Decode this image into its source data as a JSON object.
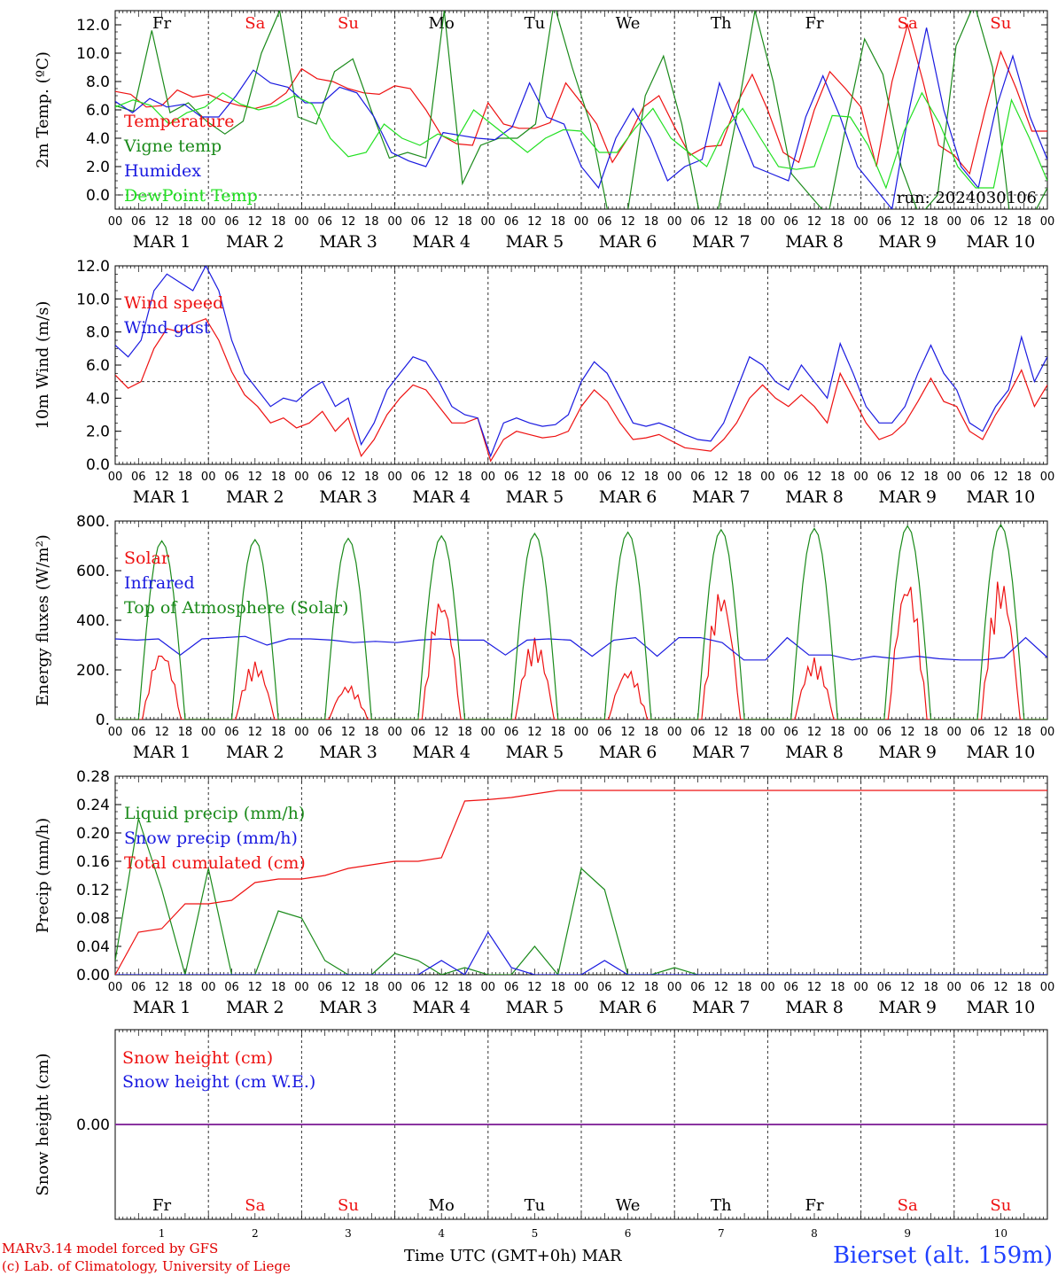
{
  "colors": {
    "red": "#ee1111",
    "dark_green": "#1a8a1a",
    "blue": "#1a1ae0",
    "light_green": "#22e022",
    "purple": "#8a2a9a"
  },
  "days": {
    "weekday_labels": [
      "Fr",
      "Sa",
      "Su",
      "Mo",
      "Tu",
      "We",
      "Th",
      "Fr",
      "Sa",
      "Su"
    ],
    "weekend_flags": [
      false,
      true,
      true,
      false,
      false,
      false,
      false,
      false,
      true,
      true
    ],
    "date_labels": [
      "MAR  1",
      "MAR  2",
      "MAR  3",
      "MAR  4",
      "MAR  5",
      "MAR  6",
      "MAR  7",
      "MAR  8",
      "MAR  9",
      "MAR 10"
    ],
    "day_numbers": [
      "1",
      "2",
      "3",
      "4",
      "5",
      "6",
      "7",
      "8",
      "9",
      "10"
    ],
    "hour_ticks": [
      "00",
      "06",
      "12",
      "18"
    ],
    "final_tick": "00"
  },
  "footer": {
    "credit_line1": "MARv3.14 model forced by GFS",
    "credit_line2": "(c) Lab. of Climatology, University of Liege",
    "xlabel": "Time UTC (GMT+0h)",
    "xlabel_suffix": "MAR",
    "station": "Bierset (alt. 159m)"
  },
  "chart_data": [
    {
      "type": "line",
      "id": "temp",
      "ylabel": "2m Temp. (ºC)",
      "ylim": [
        -1.0,
        13.0
      ],
      "yticks": [
        0.0,
        2.0,
        4.0,
        6.0,
        8.0,
        10.0,
        12.0
      ],
      "ytick_labels": [
        "0.0",
        "2.0",
        "4.0",
        "6.0",
        "8.0",
        "10.0",
        "12.0"
      ],
      "ref_line": 0.0,
      "show_weekdays": true,
      "annotation": "run: 2024030106",
      "x_hours_from_start": "0 to 240, every 6 h",
      "series": [
        {
          "name": "Temperature",
          "color_key": "red",
          "values": [
            7.3,
            7.1,
            6.2,
            6.3,
            7.4,
            6.9,
            7.1,
            6.6,
            6.3,
            6.1,
            6.4,
            7.2,
            8.9,
            8.2,
            8.0,
            7.5,
            7.2,
            7.1,
            7.7,
            7.5,
            6.0,
            4.2,
            3.6,
            3.5,
            6.5,
            5.0,
            4.7,
            4.7,
            5.1,
            7.9,
            6.5,
            5.0,
            2.3,
            4.0,
            6.2,
            7.0,
            4.8,
            2.8,
            3.4,
            3.5,
            6.4,
            8.5,
            6.0,
            3.0,
            2.3,
            6.0,
            8.7,
            7.5,
            6.2,
            2.0,
            8.0,
            12.0,
            8.0,
            3.5,
            2.8,
            1.5,
            6.0,
            10.1,
            7.5,
            4.5,
            4.5
          ]
        },
        {
          "name": "Vigne temp",
          "color_key": "dark_green",
          "values": [
            6.3,
            5.9,
            11.6,
            5.8,
            6.5,
            5.2,
            4.3,
            5.2,
            10.0,
            13.0,
            5.5,
            5.0,
            8.7,
            9.6,
            6.0,
            2.6,
            3.0,
            2.6,
            13.0,
            0.8,
            3.5,
            4.0,
            4.0,
            5.0,
            13.5,
            9.0,
            5.0,
            -1.5,
            -1.5,
            7.0,
            9.8,
            5.0,
            -1.5,
            -1.0,
            5.5,
            13.0,
            8.0,
            1.5,
            0.0,
            -1.5,
            5.0,
            11.0,
            8.5,
            2.0,
            -1.5,
            0.0,
            10.5,
            13.5,
            9.0,
            -2.0,
            -2.0,
            0.5
          ]
        },
        {
          "name": "Humidex",
          "color_key": "blue",
          "values": [
            6.6,
            5.8,
            6.8,
            6.2,
            6.4,
            5.5,
            5.5,
            7.0,
            8.8,
            7.9,
            7.6,
            6.5,
            6.5,
            7.6,
            7.2,
            5.5,
            3.0,
            2.4,
            2.0,
            4.4,
            4.2,
            4.0,
            3.9,
            4.8,
            7.9,
            5.5,
            5.0,
            2.0,
            0.5,
            4.0,
            6.1,
            4.0,
            1.0,
            2.0,
            2.5,
            7.9,
            5.0,
            2.0,
            1.5,
            1.0,
            5.5,
            8.4,
            5.5,
            2.0,
            0.5,
            -1.0,
            6.0,
            11.8,
            6.0,
            2.0,
            0.5,
            6.0,
            9.8,
            5.5,
            2.5
          ]
        },
        {
          "name": "DewPoint Temp",
          "color_key": "light_green",
          "values": [
            6.2,
            6.7,
            6.3,
            5.0,
            5.8,
            6.2,
            7.2,
            6.4,
            6.0,
            6.3,
            7.0,
            6.4,
            4.0,
            2.7,
            3.0,
            5.0,
            4.0,
            3.5,
            4.3,
            3.8,
            6.0,
            5.0,
            4.0,
            3.0,
            4.0,
            4.6,
            4.5,
            3.0,
            3.0,
            4.7,
            6.1,
            4.0,
            3.0,
            2.0,
            4.6,
            6.1,
            4.0,
            2.0,
            1.8,
            2.0,
            5.6,
            5.5,
            3.5,
            0.5,
            4.5,
            7.2,
            5.0,
            2.0,
            0.5,
            0.5,
            6.7,
            4.0,
            1.0
          ]
        }
      ]
    },
    {
      "type": "line",
      "id": "wind",
      "ylabel": "10m Wind (m/s)",
      "ylim": [
        0.0,
        12.0
      ],
      "yticks": [
        0.0,
        2.0,
        4.0,
        6.0,
        8.0,
        10.0,
        12.0
      ],
      "ytick_labels": [
        "0.0",
        "2.0",
        "4.0",
        "6.0",
        "8.0",
        "10.0",
        "12.0"
      ],
      "ref_line": 5.0,
      "show_weekdays": false,
      "series": [
        {
          "name": "Wind speed",
          "color_key": "red",
          "values": [
            5.4,
            4.6,
            5.0,
            7.0,
            8.2,
            8.0,
            8.5,
            8.8,
            7.5,
            5.6,
            4.2,
            3.5,
            2.5,
            2.8,
            2.2,
            2.5,
            3.2,
            2.0,
            2.8,
            0.5,
            1.5,
            3.0,
            4.0,
            4.8,
            4.5,
            3.5,
            2.5,
            2.5,
            2.8,
            0.2,
            1.5,
            2.0,
            1.8,
            1.6,
            1.7,
            2.0,
            3.5,
            4.5,
            3.8,
            2.5,
            1.5,
            1.6,
            1.8,
            1.4,
            1.0,
            0.9,
            0.8,
            1.5,
            2.5,
            4.0,
            4.8,
            4.0,
            3.5,
            4.2,
            3.5,
            2.5,
            5.5,
            4.0,
            2.5,
            1.5,
            1.8,
            2.5,
            3.8,
            5.2,
            3.8,
            3.5,
            2.0,
            1.5,
            3.0,
            4.2,
            5.7,
            3.5,
            4.8
          ]
        },
        {
          "name": "Wind gust",
          "color_key": "blue",
          "values": [
            7.2,
            6.5,
            7.5,
            10.5,
            11.5,
            11.0,
            10.5,
            12.0,
            10.5,
            7.5,
            5.5,
            4.5,
            3.5,
            4.0,
            3.8,
            4.5,
            5.0,
            3.5,
            4.0,
            1.2,
            2.5,
            4.5,
            5.5,
            6.5,
            6.2,
            5.0,
            3.5,
            3.0,
            2.8,
            0.5,
            2.5,
            2.8,
            2.5,
            2.3,
            2.4,
            3.0,
            5.0,
            6.2,
            5.5,
            4.0,
            2.5,
            2.3,
            2.5,
            2.2,
            1.8,
            1.5,
            1.4,
            2.5,
            4.5,
            6.5,
            6.0,
            5.0,
            4.5,
            6.0,
            5.0,
            4.0,
            7.3,
            5.5,
            3.5,
            2.5,
            2.5,
            3.5,
            5.5,
            7.2,
            5.5,
            4.5,
            2.5,
            2.0,
            3.5,
            4.5,
            7.7,
            5.0,
            6.5
          ]
        }
      ]
    },
    {
      "type": "line",
      "id": "flux",
      "ylabel": "Energy fluxes (W/m²)",
      "ylim": [
        0.0,
        800.0
      ],
      "yticks": [
        0.0,
        200.0,
        400.0,
        600.0,
        800.0
      ],
      "ytick_labels": [
        "0.",
        "200.",
        "400.",
        "600.",
        "800."
      ],
      "ref_line": null,
      "show_weekdays": false,
      "daily_solar_peaks": [
        285,
        235,
        140,
        505,
        330,
        205,
        535,
        250,
        580,
        580
      ],
      "daily_toa_peaks": [
        720,
        725,
        730,
        740,
        750,
        755,
        765,
        770,
        780,
        785
      ],
      "series": [
        {
          "name": "Solar",
          "color_key": "red",
          "values": "one daily cycle per day, peak values in daily_solar_peaks"
        },
        {
          "name": "Infrared",
          "color_key": "blue",
          "values": [
            325,
            320,
            325,
            260,
            325,
            330,
            335,
            300,
            325,
            325,
            320,
            310,
            315,
            310,
            320,
            325,
            320,
            320,
            260,
            320,
            325,
            320,
            255,
            320,
            330,
            255,
            330,
            330,
            310,
            240,
            240,
            330,
            260,
            260,
            240,
            255,
            245,
            255,
            245,
            240,
            240,
            250,
            330,
            250
          ]
        },
        {
          "name": "Top of Atmosphere (Solar)",
          "color_key": "dark_green",
          "values": "one daily cycle per day, peak values in daily_toa_peaks"
        }
      ]
    },
    {
      "type": "line",
      "id": "precip",
      "ylabel": "Precip (mm/h)",
      "ylim": [
        0.0,
        0.28
      ],
      "yticks": [
        0.0,
        0.04,
        0.08,
        0.12,
        0.16,
        0.2,
        0.24,
        0.28
      ],
      "ytick_labels": [
        "0.00",
        "0.04",
        "0.08",
        "0.12",
        "0.16",
        "0.20",
        "0.24",
        "0.28"
      ],
      "ref_line": null,
      "show_weekdays": false,
      "series": [
        {
          "name": "Liquid precip (mm/h)",
          "color_key": "dark_green",
          "values": [
            0.02,
            0.22,
            0.12,
            0.0,
            0.15,
            0.0,
            0.0,
            0.09,
            0.08,
            0.02,
            0.0,
            0.0,
            0.03,
            0.02,
            0.0,
            0.01,
            0.0,
            0.0,
            0.04,
            0.0,
            0.15,
            0.12,
            0.0,
            0.0,
            0.01,
            0.0,
            0.0,
            0.0,
            0.0,
            0.0,
            0.0,
            0.0,
            0.0,
            0.0,
            0.0,
            0.0,
            0.0,
            0.0,
            0.0,
            0.0,
            0.0
          ]
        },
        {
          "name": "Snow precip (mm/h)",
          "color_key": "blue",
          "values": [
            0.0,
            0.0,
            0.0,
            0.0,
            0.0,
            0.0,
            0.0,
            0.0,
            0.0,
            0.0,
            0.0,
            0.0,
            0.0,
            0.0,
            0.02,
            0.0,
            0.06,
            0.01,
            0.0,
            0.0,
            0.0,
            0.02,
            0.0,
            0.0,
            0.0,
            0.0,
            0.0,
            0.0,
            0.0,
            0.0,
            0.0,
            0.0,
            0.0,
            0.0,
            0.0,
            0.0,
            0.0,
            0.0,
            0.0,
            0.0,
            0.0
          ]
        },
        {
          "name": "Total cumulated (cm)",
          "color_key": "red",
          "values": [
            0.0,
            0.06,
            0.065,
            0.1,
            0.1,
            0.105,
            0.13,
            0.135,
            0.135,
            0.14,
            0.15,
            0.155,
            0.16,
            0.16,
            0.165,
            0.245,
            0.247,
            0.25,
            0.255,
            0.26,
            0.26,
            0.26,
            0.26,
            0.26,
            0.26,
            0.26,
            0.26,
            0.26,
            0.26,
            0.26,
            0.26,
            0.26,
            0.26,
            0.26,
            0.26,
            0.26,
            0.26,
            0.26,
            0.26,
            0.26,
            0.26
          ]
        }
      ]
    },
    {
      "type": "line",
      "id": "snow",
      "ylabel": "Snow height (cm)",
      "ylim": [
        -1.0,
        1.0
      ],
      "yticks": [
        0.0
      ],
      "ytick_labels": [
        "0.00"
      ],
      "ref_line": null,
      "show_weekdays": true,
      "series": [
        {
          "name": "Snow height (cm)",
          "color_key": "red",
          "values": [
            0.0,
            0.0
          ]
        },
        {
          "name": "Snow height (cm W.E.)",
          "color_key": "blue",
          "values": [
            0.0,
            0.0
          ]
        }
      ]
    }
  ]
}
